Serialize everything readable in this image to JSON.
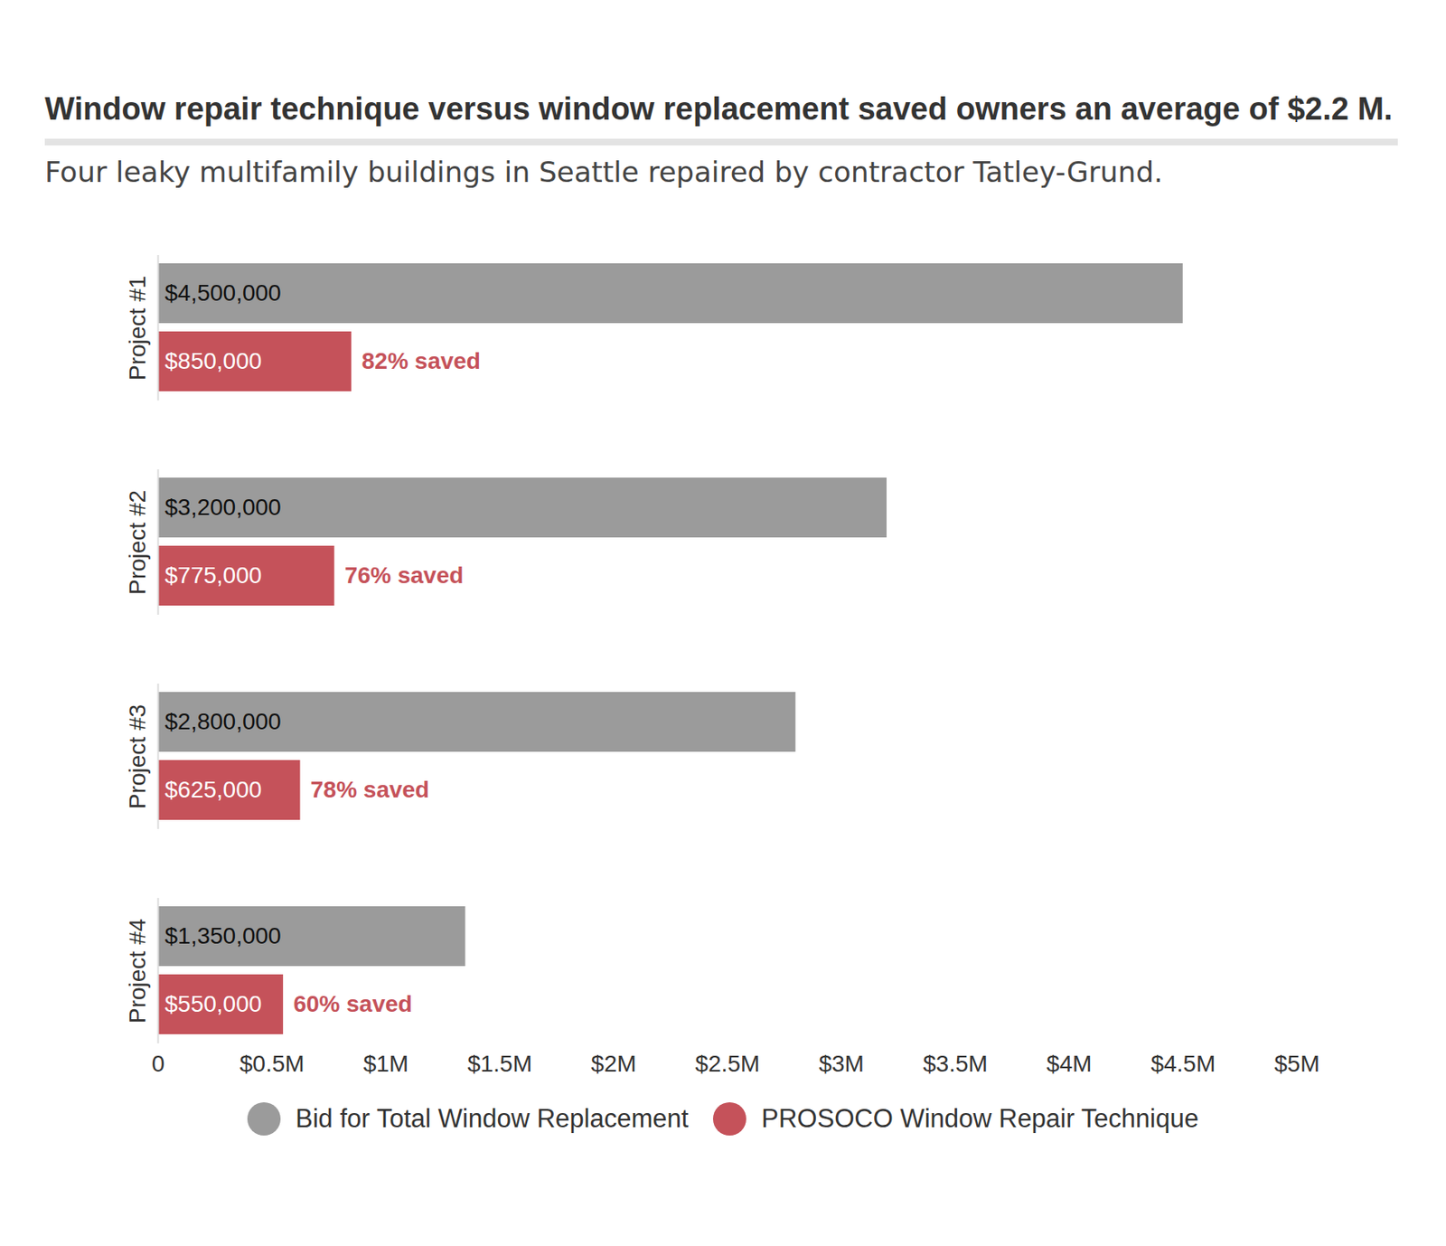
{
  "chart_data": {
    "type": "bar",
    "title": "Window repair technique versus window replacement saved owners an average of $2.2 M.",
    "subtitle": "Four leaky multifamily buildings in Seattle repaired by contractor Tatley-Grund.",
    "orientation": "horizontal",
    "categories": [
      "Project #1",
      "Project #2",
      "Project #3",
      "Project #4"
    ],
    "series": [
      {
        "name": "Bid for Total Window Replacement",
        "color": "#9b9b9b",
        "values": [
          4500000,
          3200000,
          2800000,
          1350000
        ],
        "value_labels": [
          "$4,500,000",
          "$3,200,000",
          "$2,800,000",
          "$1,350,000"
        ]
      },
      {
        "name": "PROSOCO Window Repair Technique",
        "color": "#c5525a",
        "values": [
          850000,
          775000,
          625000,
          550000
        ],
        "value_labels": [
          "$850,000",
          "$775,000",
          "$625,000",
          "$550,000"
        ]
      }
    ],
    "annotations": [
      "82% saved",
      "76% saved",
      "78% saved",
      "60% saved"
    ],
    "xlim": [
      0,
      5000000
    ],
    "xticks": [
      0,
      {
        "value": 500000,
        "label": "$0.5M"
      },
      {
        "value": 1000000,
        "label": "$1M"
      },
      {
        "value": 1500000,
        "label": "$1.5M"
      },
      {
        "value": 2000000,
        "label": "$2M"
      },
      {
        "value": 2500000,
        "label": "$2.5M"
      },
      {
        "value": 3000000,
        "label": "$3M"
      },
      {
        "value": 3500000,
        "label": "$3.5M"
      },
      {
        "value": 4000000,
        "label": "$4M"
      },
      {
        "value": 4500000,
        "label": "$4.5M"
      },
      {
        "value": 5000000,
        "label": "$5M"
      }
    ],
    "data_labels": true,
    "grid": false,
    "legend": "bottom"
  }
}
